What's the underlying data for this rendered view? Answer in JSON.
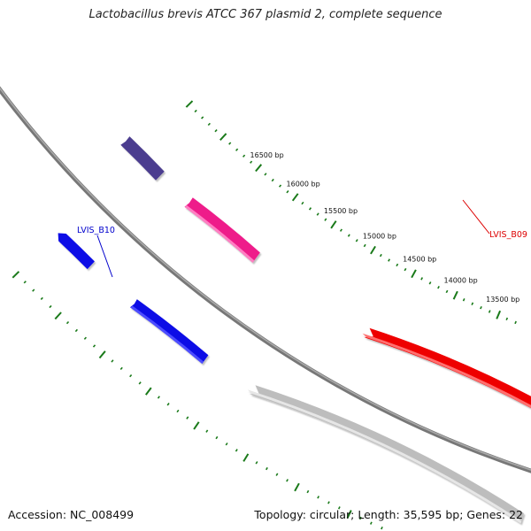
{
  "title": "Lactobacillus brevis ATCC 367 plasmid 2, complete sequence",
  "footer": {
    "accession": "Accession: NC_008499",
    "summary": "Topology: circular; Length: 35,595 bp; Genes: 22"
  },
  "ticks": {
    "color": "#1a7a1a",
    "labels": [
      {
        "pos": 13500,
        "text": "13500 bp"
      },
      {
        "pos": 14000,
        "text": "14000 bp"
      },
      {
        "pos": 14500,
        "text": "14500 bp"
      },
      {
        "pos": 15000,
        "text": "15000 bp"
      },
      {
        "pos": 15500,
        "text": "15500 bp"
      },
      {
        "pos": 16000,
        "text": "16000 bp"
      },
      {
        "pos": 16500,
        "text": "16500 bp"
      }
    ]
  },
  "genes": [
    {
      "label": "LVIS_B09",
      "color": "#ee0000",
      "label_color": "#dd0000"
    },
    {
      "label": "LVIS_B10",
      "color": "#ee1a8a",
      "label_color": "#0000cc"
    }
  ],
  "colors": {
    "backbone": "#777777",
    "gene_gray": "#bdbdbd",
    "gene_blue": "#0a0ae6",
    "gene_purple": "#4b3d8f"
  }
}
